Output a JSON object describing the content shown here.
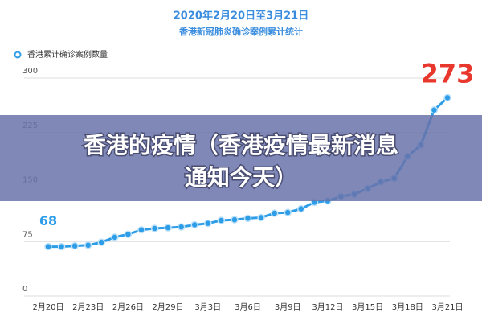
{
  "chart_data": {
    "type": "line",
    "title": "2020年2月20日至3月21日",
    "subtitle": "香港新冠肺炎确诊案例累计统计",
    "categories": [
      "2月20日",
      null,
      null,
      "2月23日",
      null,
      null,
      "2月26日",
      null,
      null,
      "2月29日",
      null,
      null,
      "3月3日",
      null,
      null,
      "3月6日",
      null,
      null,
      "3月9日",
      null,
      null,
      "3月12日",
      null,
      null,
      "3月15日",
      null,
      null,
      "3月18日",
      null,
      null,
      "3月21日"
    ],
    "series": [
      {
        "name": "香港累计确诊案例数量",
        "color": "#2d9de8",
        "values": [
          68,
          68,
          69,
          70,
          74,
          81,
          85,
          91,
          93,
          94,
          95,
          98,
          100,
          104,
          105,
          107,
          108,
          114,
          115,
          120,
          129,
          131,
          137,
          140,
          148,
          157,
          162,
          192,
          208,
          256,
          273
        ]
      }
    ],
    "ylim": [
      0,
      300
    ],
    "yticks": [
      0,
      75,
      150,
      225,
      300
    ],
    "grid": true,
    "legend": "top-left",
    "overlay": {
      "lines": [
        "香港的疫情（香港疫情最新消息",
        "通知今天）"
      ]
    }
  }
}
